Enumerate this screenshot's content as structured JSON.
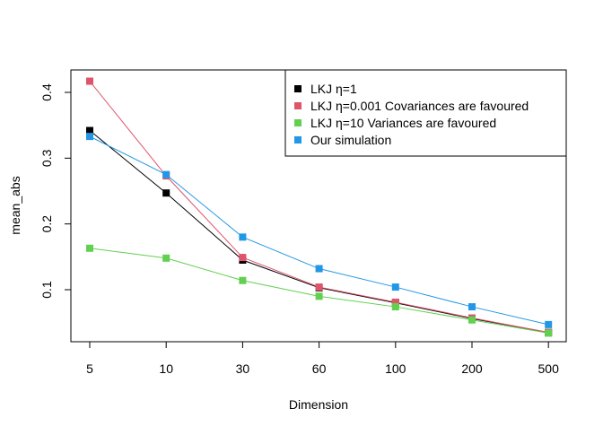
{
  "chart_data": {
    "type": "line",
    "title": "",
    "xlabel": "Dimension",
    "ylabel": "mean_abs",
    "categories": [
      "5",
      "10",
      "30",
      "60",
      "100",
      "200",
      "500"
    ],
    "yticks": [
      0.1,
      0.2,
      0.3,
      0.4
    ],
    "ylim": [
      0.025,
      0.43
    ],
    "grid": false,
    "legend_position": "top-right",
    "series": [
      {
        "name": "LKJ η=1",
        "color": "#000000",
        "values": [
          0.342,
          0.247,
          0.145,
          0.103,
          0.08,
          0.056,
          0.035
        ]
      },
      {
        "name": "LKJ η=0.001 Covariances are favoured",
        "color": "#DF536B",
        "values": [
          0.417,
          0.273,
          0.149,
          0.104,
          0.081,
          0.057,
          0.035
        ]
      },
      {
        "name": "LKJ η=10 Variances are favoured",
        "color": "#61D04F",
        "values": [
          0.163,
          0.148,
          0.114,
          0.09,
          0.074,
          0.054,
          0.034
        ]
      },
      {
        "name": "Our simulation",
        "color": "#2297E6",
        "values": [
          0.333,
          0.275,
          0.18,
          0.132,
          0.104,
          0.074,
          0.047
        ]
      }
    ]
  }
}
